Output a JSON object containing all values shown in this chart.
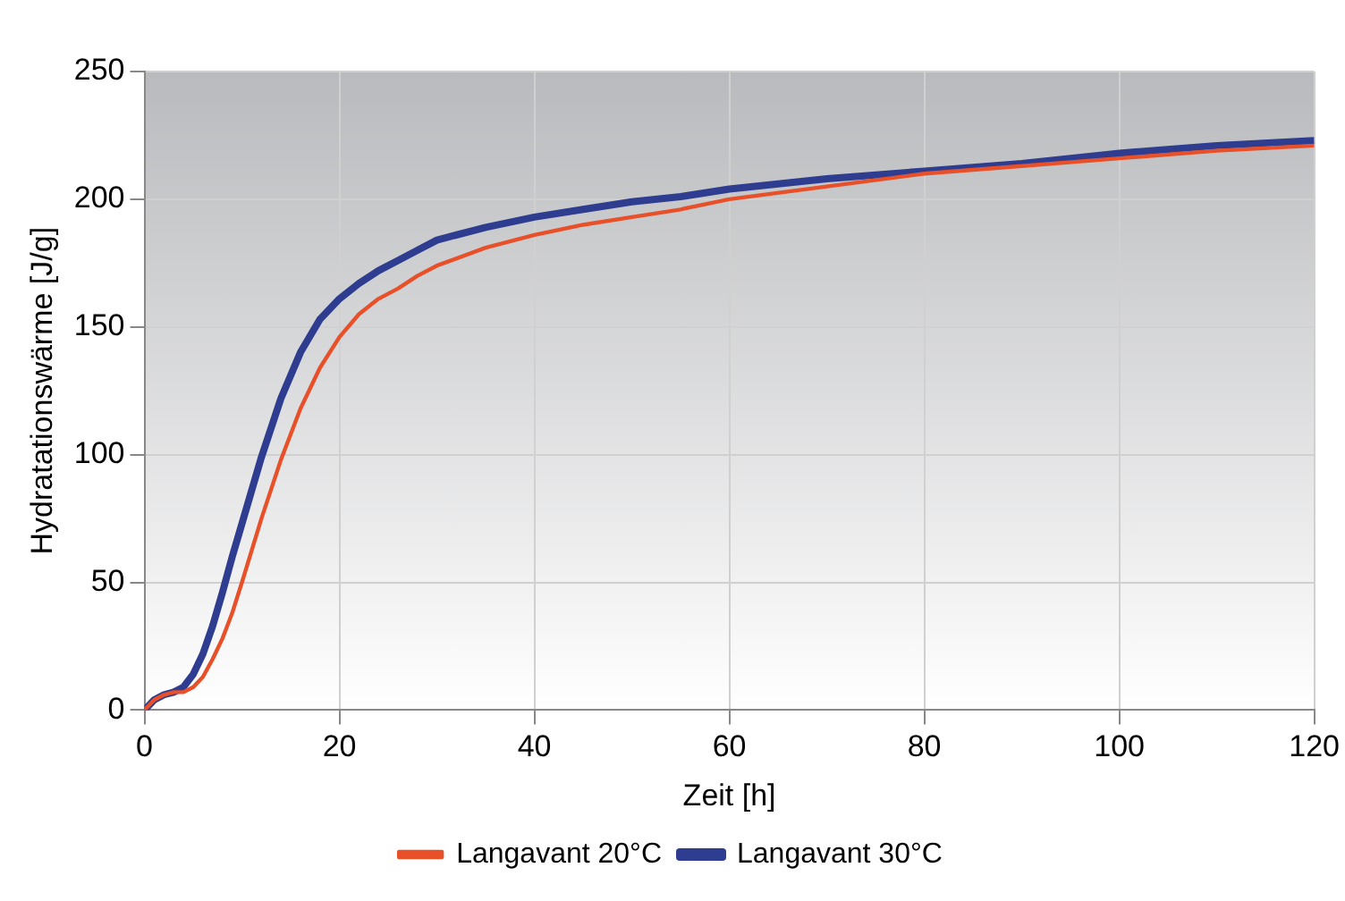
{
  "chart_data": {
    "type": "line",
    "xlabel": "Zeit [h]",
    "ylabel": "Hydratationswärme [J/g]",
    "xlim": [
      0,
      120
    ],
    "xticks": [
      0,
      20,
      40,
      60,
      80,
      100,
      120
    ],
    "ylim": [
      0,
      250
    ],
    "yticks": [
      0,
      50,
      100,
      150,
      200,
      250
    ],
    "grid": true,
    "legend": "bottom",
    "marker": "none",
    "line_style": "solid",
    "series": [
      {
        "name": "Langavant 20°C",
        "color": "#e8502a",
        "x": [
          0,
          1,
          2,
          3,
          4,
          5,
          6,
          7,
          8,
          9,
          10,
          12,
          14,
          16,
          18,
          20,
          22,
          24,
          26,
          28,
          30,
          35,
          40,
          45,
          50,
          55,
          60,
          70,
          80,
          90,
          100,
          110,
          120
        ],
        "values": [
          0,
          4,
          6,
          7,
          7,
          9,
          13,
          20,
          28,
          38,
          50,
          75,
          98,
          118,
          134,
          146,
          155,
          161,
          165,
          170,
          174,
          181,
          186,
          190,
          193,
          196,
          200,
          205,
          210,
          213,
          216,
          219,
          221
        ]
      },
      {
        "name": "Langavant 30°C",
        "color": "#2e3d8f",
        "x": [
          0,
          1,
          2,
          3,
          4,
          5,
          6,
          7,
          8,
          9,
          10,
          12,
          14,
          16,
          18,
          20,
          22,
          24,
          26,
          28,
          30,
          35,
          40,
          45,
          50,
          55,
          60,
          70,
          80,
          90,
          100,
          110,
          120
        ],
        "values": [
          0,
          4,
          6,
          7,
          9,
          14,
          22,
          33,
          46,
          60,
          73,
          99,
          122,
          140,
          153,
          161,
          167,
          172,
          176,
          180,
          184,
          189,
          193,
          196,
          199,
          201,
          204,
          208,
          211,
          214,
          218,
          221,
          223
        ]
      }
    ]
  }
}
